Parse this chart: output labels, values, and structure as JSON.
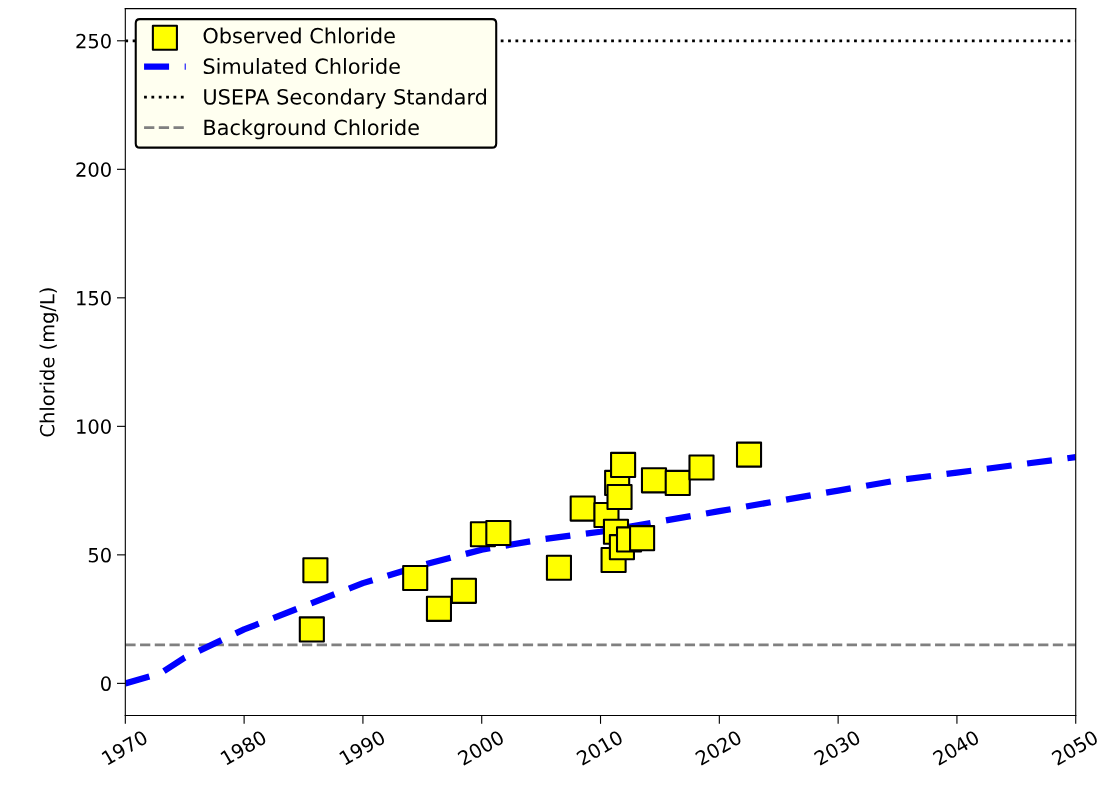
{
  "chart_data": {
    "type": "scatter",
    "ylabel": "Chloride (mg/L)",
    "xlim": [
      1970,
      2050
    ],
    "xticks": [
      1970,
      1980,
      1990,
      2000,
      2010,
      2020,
      2030,
      2040,
      2050
    ],
    "ylim": [
      -12.5,
      262.5
    ],
    "yticks": [
      0,
      50,
      100,
      150,
      200,
      250
    ],
    "grid": false,
    "legend": "top left",
    "series": [
      {
        "name": "Observed Chloride",
        "marker": "square",
        "color": "#ffff00",
        "x": [
          1985.7,
          1986.0,
          1994.4,
          1996.4,
          1998.5,
          2000.1,
          2001.4,
          2006.5,
          2008.5,
          2010.5,
          2011.1,
          2011.3,
          2011.4,
          2011.6,
          2011.8,
          2011.9,
          2012.4,
          2013.5,
          2014.5,
          2016.5,
          2018.5,
          2022.5
        ],
        "values": [
          21,
          44,
          41,
          29,
          36,
          58,
          58.5,
          45,
          68,
          65.5,
          48,
          59,
          78,
          72.5,
          53,
          85,
          56,
          56.5,
          79,
          78,
          84,
          89
        ]
      },
      {
        "name": "Simulated Chloride",
        "type": "line",
        "line_style": "dashed",
        "marker": "none",
        "color": "#0000ff",
        "x": [
          1970,
          1973,
          1975,
          1980,
          1985,
          1990,
          1995,
          2000,
          2005,
          2010,
          2015,
          2020,
          2025,
          2030,
          2035,
          2040,
          2045,
          2050
        ],
        "values": [
          0,
          4,
          10,
          21,
          30,
          39,
          46,
          52,
          56,
          59,
          63,
          67,
          71,
          75,
          79,
          82,
          85,
          88
        ]
      }
    ],
    "ref_lines": [
      {
        "axis": "y",
        "value": 250,
        "label": "USEPA Secondary Standard",
        "color": "#000000",
        "line_style": "dotted"
      },
      {
        "axis": "y",
        "value": 15,
        "label": "Background Chloride",
        "color": "#808080",
        "line_style": "dashed"
      }
    ]
  }
}
